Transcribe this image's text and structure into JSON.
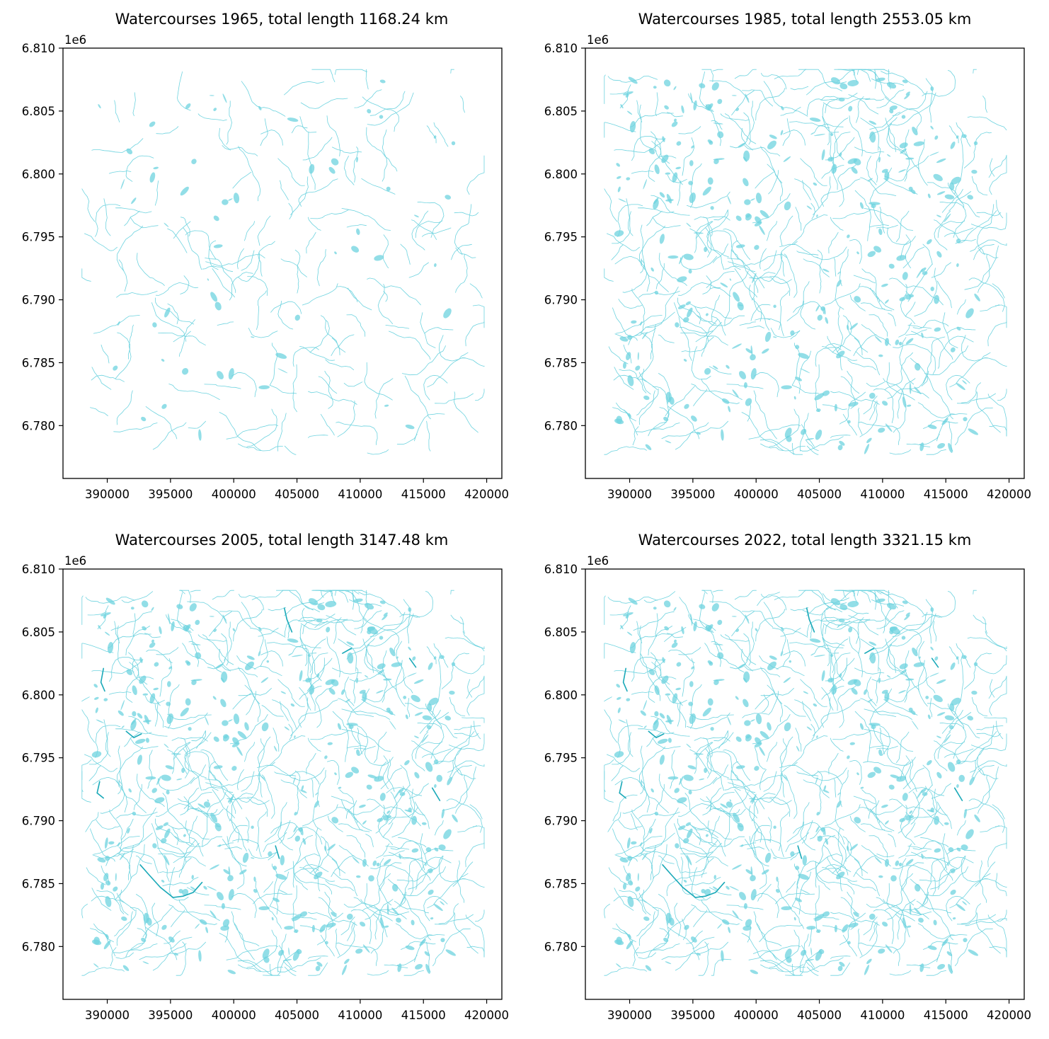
{
  "figure": {
    "background": "#ffffff",
    "line_color": "#6ed3df",
    "dark_line_color": "#1aa9b8",
    "axis_color": "#000000"
  },
  "chart_data": [
    {
      "type": "map",
      "title": "Watercourses 1965, total length 1168.24 km",
      "year": 1965,
      "total_length_km": 1168.24,
      "xlim": [
        386500,
        421200
      ],
      "ylim": [
        6775800,
        6810000
      ],
      "xticks": [
        390000,
        395000,
        400000,
        405000,
        410000,
        415000,
        420000
      ],
      "xtick_labels": [
        "390000",
        "395000",
        "400000",
        "405000",
        "410000",
        "415000",
        "420000"
      ],
      "yticks": [
        6780000,
        6785000,
        6790000,
        6795000,
        6800000,
        6805000,
        6810000
      ],
      "ytick_labels": [
        "6.780",
        "6.785",
        "6.790",
        "6.795",
        "6.800",
        "6.805",
        "6.810"
      ],
      "y_offset_label": "1e6",
      "density": 0.35,
      "dark_density": 0.0,
      "blob_density": 0.15
    },
    {
      "type": "map",
      "title": "Watercourses 1985, total length 2553.05 km",
      "year": 1985,
      "total_length_km": 2553.05,
      "xlim": [
        386500,
        421200
      ],
      "ylim": [
        6775800,
        6810000
      ],
      "xticks": [
        390000,
        395000,
        400000,
        405000,
        410000,
        415000,
        420000
      ],
      "xtick_labels": [
        "390000",
        "395000",
        "400000",
        "405000",
        "410000",
        "415000",
        "420000"
      ],
      "yticks": [
        6780000,
        6785000,
        6790000,
        6795000,
        6800000,
        6805000,
        6810000
      ],
      "ytick_labels": [
        "6.780",
        "6.785",
        "6.790",
        "6.795",
        "6.800",
        "6.805",
        "6.810"
      ],
      "y_offset_label": "1e6",
      "density": 0.76,
      "dark_density": 0.0,
      "blob_density": 0.7
    },
    {
      "type": "map",
      "title": "Watercourses 2005, total length 3147.48 km",
      "year": 2005,
      "total_length_km": 3147.48,
      "xlim": [
        386500,
        421200
      ],
      "ylim": [
        6775800,
        6810000
      ],
      "xticks": [
        390000,
        395000,
        400000,
        405000,
        410000,
        415000,
        420000
      ],
      "xtick_labels": [
        "390000",
        "395000",
        "400000",
        "405000",
        "410000",
        "415000",
        "420000"
      ],
      "yticks": [
        6780000,
        6785000,
        6790000,
        6795000,
        6800000,
        6805000,
        6810000
      ],
      "ytick_labels": [
        "6.780",
        "6.785",
        "6.790",
        "6.795",
        "6.800",
        "6.805",
        "6.810"
      ],
      "y_offset_label": "1e6",
      "density": 0.94,
      "dark_density": 1.0,
      "blob_density": 0.85
    },
    {
      "type": "map",
      "title": "Watercourses 2022, total length 3321.15 km",
      "year": 2022,
      "total_length_km": 3321.15,
      "xlim": [
        386500,
        421200
      ],
      "ylim": [
        6775800,
        6810000
      ],
      "xticks": [
        390000,
        395000,
        400000,
        405000,
        410000,
        415000,
        420000
      ],
      "xtick_labels": [
        "390000",
        "395000",
        "400000",
        "405000",
        "410000",
        "415000",
        "420000"
      ],
      "yticks": [
        6780000,
        6785000,
        6790000,
        6795000,
        6800000,
        6805000,
        6810000
      ],
      "ytick_labels": [
        "6.780",
        "6.785",
        "6.790",
        "6.795",
        "6.800",
        "6.805",
        "6.810"
      ],
      "y_offset_label": "1e6",
      "density": 1.0,
      "dark_density": 1.0,
      "blob_density": 0.85
    }
  ]
}
